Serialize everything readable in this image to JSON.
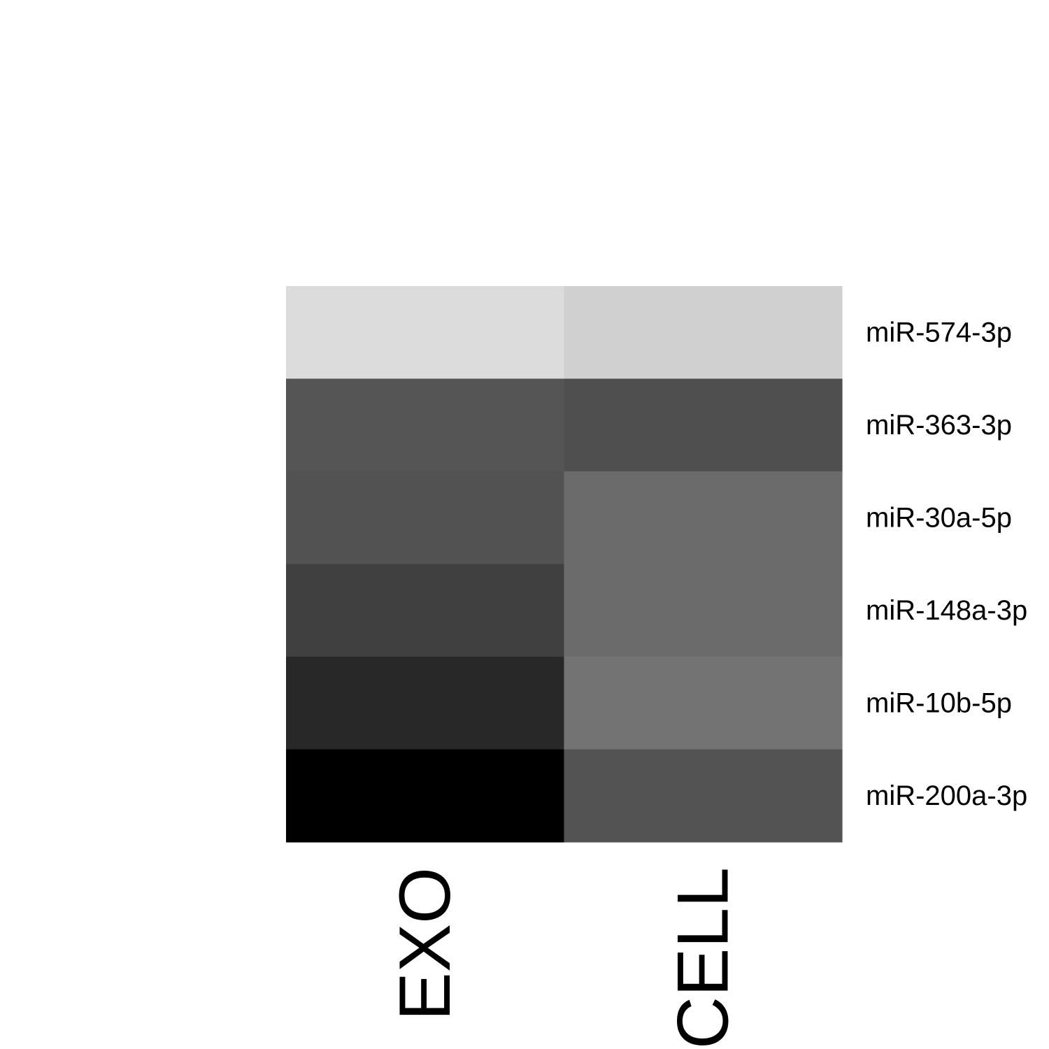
{
  "chart_data": {
    "type": "heatmap",
    "title": "",
    "xlabel": "",
    "ylabel": "",
    "columns": [
      "EXO",
      "CELL"
    ],
    "rows": [
      "miR-574-3p",
      "miR-363-3p",
      "miR-30a-5p",
      "miR-148a-3p",
      "miR-10b-5p",
      "miR-200a-3p"
    ],
    "cell_colors": [
      [
        "#dcdcdc",
        "#d0d0d0"
      ],
      [
        "#555555",
        "#4f4f4f"
      ],
      [
        "#525252",
        "#6b6b6b"
      ],
      [
        "#404040",
        "#6b6b6b"
      ],
      [
        "#282828",
        "#737373"
      ],
      [
        "#000000",
        "#535353"
      ]
    ],
    "color_scale": "grayscale (dark = high, light = low)",
    "legend": "none",
    "grid": false
  }
}
